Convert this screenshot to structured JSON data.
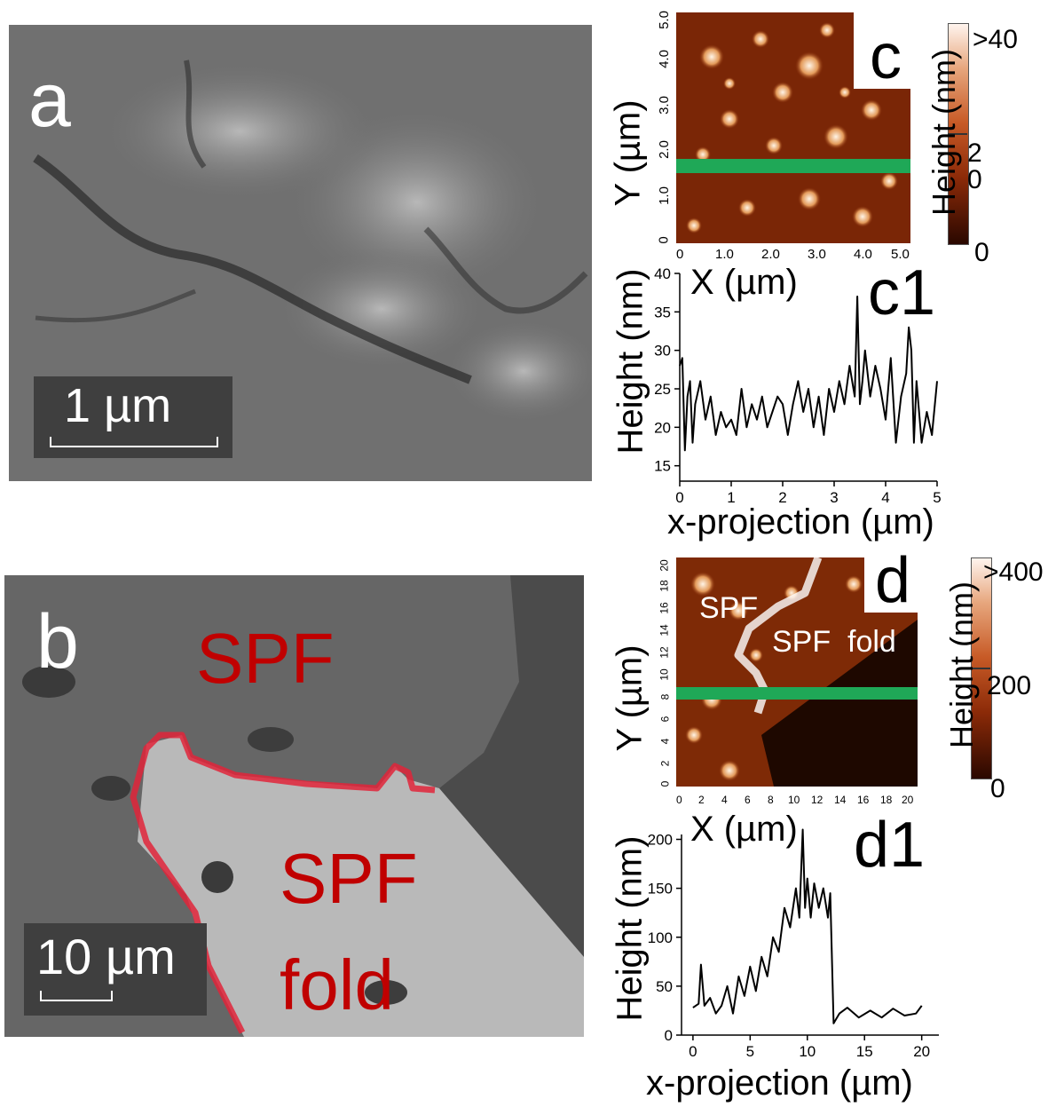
{
  "panel_a": {
    "label": "a",
    "scale_bar": "1 µm"
  },
  "panel_b": {
    "label": "b",
    "scale_bar": "10 µm",
    "region_spf": "SPF",
    "region_fold_line1": "SPF",
    "region_fold_line2": "fold",
    "colors": {
      "outline": "#e0243a",
      "text": "#c00000"
    }
  },
  "panel_c": {
    "label": "c",
    "xlabel": "X (µm)",
    "ylabel": "Y (µm)",
    "x_ticks": [
      "0",
      "1.0",
      "2.0",
      "3.0",
      "4.0",
      "5.0"
    ],
    "y_ticks": [
      "0",
      "1.0",
      "2.0",
      "3.0",
      "4.0",
      "5.0"
    ],
    "colorbar": {
      "title": "Height (nm)",
      "top": ">40",
      "mid": "20",
      "bottom": "0"
    },
    "line_color": "#1fa857"
  },
  "panel_d": {
    "label": "d",
    "xlabel": "X (µm)",
    "ylabel": "Y (µm)",
    "region_spf": "SPF",
    "region_fold": "SPF  fold",
    "x_ticks": [
      "0",
      "2",
      "4",
      "6",
      "8",
      "10",
      "12",
      "14",
      "16",
      "18",
      "20"
    ],
    "y_ticks": [
      "0",
      "2",
      "4",
      "6",
      "8",
      "10",
      "12",
      "14",
      "16",
      "18",
      "20"
    ],
    "colorbar": {
      "title": "Height (nm)",
      "top": ">400",
      "mid": "200",
      "bottom": "0"
    },
    "line_color": "#1fa857"
  },
  "chart_data": [
    {
      "type": "line",
      "label": "c1",
      "xlabel": "x-projection (µm)",
      "ylabel": "Height (nm)",
      "xlim": [
        0,
        5
      ],
      "ylim": [
        13,
        40
      ],
      "x_ticks": [
        0,
        1,
        2,
        3,
        4,
        5
      ],
      "y_ticks": [
        15,
        20,
        25,
        30,
        35,
        40
      ],
      "x": [
        0,
        0.05,
        0.1,
        0.15,
        0.2,
        0.25,
        0.3,
        0.4,
        0.5,
        0.6,
        0.7,
        0.8,
        0.9,
        1.0,
        1.1,
        1.2,
        1.3,
        1.4,
        1.5,
        1.6,
        1.7,
        1.8,
        1.9,
        2.0,
        2.1,
        2.2,
        2.3,
        2.4,
        2.5,
        2.6,
        2.7,
        2.8,
        2.9,
        3.0,
        3.1,
        3.2,
        3.3,
        3.4,
        3.45,
        3.5,
        3.55,
        3.6,
        3.7,
        3.8,
        3.9,
        4.0,
        4.1,
        4.2,
        4.3,
        4.4,
        4.45,
        4.5,
        4.55,
        4.6,
        4.7,
        4.8,
        4.9,
        5.0
      ],
      "y": [
        28,
        29,
        17,
        24,
        26,
        18,
        23,
        26,
        21,
        24,
        19,
        22,
        20,
        21,
        19,
        25,
        20,
        23,
        21,
        24,
        20,
        22,
        24,
        23,
        19,
        23,
        26,
        22,
        25,
        20,
        24,
        19,
        25,
        22,
        26,
        23,
        28,
        24,
        37,
        23,
        26,
        30,
        24,
        28,
        25,
        21,
        29,
        18,
        24,
        27,
        33,
        30,
        18,
        26,
        18,
        22,
        19,
        26
      ]
    },
    {
      "type": "line",
      "label": "d1",
      "xlabel": "x-projection (µm)",
      "ylabel": "Height (nm)",
      "xlim": [
        -1,
        21.5
      ],
      "ylim": [
        0,
        205
      ],
      "x_ticks": [
        0,
        5,
        10,
        15,
        20
      ],
      "y_ticks": [
        0,
        50,
        100,
        150,
        200
      ],
      "x": [
        0,
        0.5,
        0.7,
        1.0,
        1.5,
        2.0,
        2.5,
        3.0,
        3.5,
        4.0,
        4.5,
        5.0,
        5.5,
        6.0,
        6.5,
        7.0,
        7.5,
        8.0,
        8.5,
        9.0,
        9.3,
        9.6,
        9.8,
        10.0,
        10.3,
        10.6,
        11.0,
        11.4,
        11.8,
        12.0,
        12.3,
        12.8,
        13.5,
        14.5,
        15.5,
        16.5,
        17.5,
        18.5,
        19.5,
        20.0
      ],
      "y": [
        28,
        32,
        72,
        30,
        38,
        22,
        30,
        50,
        22,
        60,
        40,
        70,
        45,
        80,
        60,
        100,
        85,
        130,
        110,
        150,
        120,
        210,
        130,
        160,
        120,
        155,
        130,
        150,
        120,
        145,
        12,
        22,
        28,
        18,
        25,
        18,
        27,
        20,
        22,
        30
      ]
    }
  ]
}
